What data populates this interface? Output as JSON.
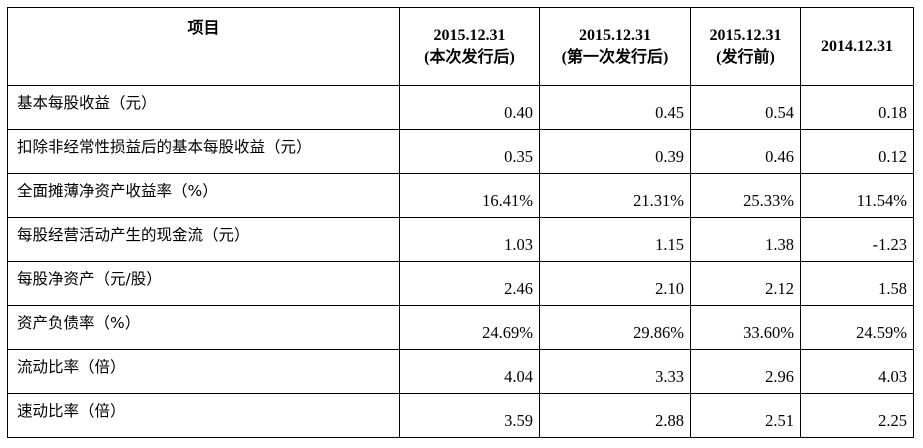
{
  "table": {
    "headers": [
      {
        "lines": [
          "项目"
        ]
      },
      {
        "lines": [
          "2015.12.31",
          "(本次发行后)"
        ]
      },
      {
        "lines": [
          "2015.12.31",
          "(第一次发行后)"
        ]
      },
      {
        "lines": [
          "2015.12.31",
          "(发行前)"
        ]
      },
      {
        "lines": [
          "2014.12.31"
        ]
      }
    ],
    "rows": [
      {
        "label": "基本每股收益（元）",
        "values": [
          "0.40",
          "0.45",
          "0.54",
          "0.18"
        ]
      },
      {
        "label": "扣除非经常性损益后的基本每股收益（元）",
        "values": [
          "0.35",
          "0.39",
          "0.46",
          "0.12"
        ]
      },
      {
        "label": "全面摊薄净资产收益率（%）",
        "values": [
          "16.41%",
          "21.31%",
          "25.33%",
          "11.54%"
        ]
      },
      {
        "label": "每股经营活动产生的现金流（元）",
        "values": [
          "1.03",
          "1.15",
          "1.38",
          "-1.23"
        ]
      },
      {
        "label": "每股净资产（元/股）",
        "values": [
          "2.46",
          "2.10",
          "2.12",
          "1.58"
        ]
      },
      {
        "label": "资产负债率（%）",
        "values": [
          "24.69%",
          "29.86%",
          "33.60%",
          "24.59%"
        ]
      },
      {
        "label": "流动比率（倍）",
        "values": [
          "4.04",
          "3.33",
          "2.96",
          "4.03"
        ]
      },
      {
        "label": "速动比率（倍）",
        "values": [
          "3.59",
          "2.88",
          "2.51",
          "2.25"
        ]
      }
    ]
  }
}
